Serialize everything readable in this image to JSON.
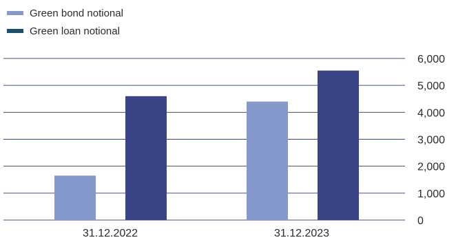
{
  "chart_data": {
    "type": "bar",
    "categories": [
      "31.12.2022",
      "31.12.2023"
    ],
    "series": [
      {
        "name": "Green bond notional",
        "values": [
          1650,
          4400
        ],
        "color": "#8598cb"
      },
      {
        "name": "Green loan notional",
        "values": [
          4600,
          5550
        ],
        "color": "#3a4486"
      }
    ],
    "title": "",
    "xlabel": "",
    "ylabel": "",
    "ylim": [
      0,
      6000
    ],
    "yticks": [
      0,
      1000,
      2000,
      3000,
      4000,
      5000,
      6000
    ],
    "ytick_labels": [
      "0",
      "1,000",
      "2,000",
      "3,000",
      "4,000",
      "5,000",
      "6,000"
    ],
    "grid": true,
    "y_axis_side": "right",
    "legend_position": "top-left",
    "legend_swatch_colors": [
      "#8598cb",
      "#1e4f6e"
    ]
  }
}
